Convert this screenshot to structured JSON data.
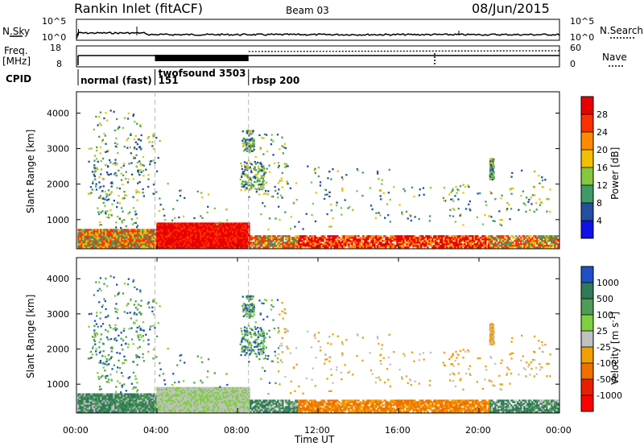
{
  "header": {
    "title": "Rankin Inlet (fitACF)",
    "beam": "Beam 03",
    "date": "08/Jun/2015"
  },
  "params": {
    "nsky_label": "N.Sky",
    "nsky_ticks": [
      "10^5",
      "10^0"
    ],
    "nsearch_label": "N.Search",
    "nsearch_ticks": [
      "10^5",
      "10^0"
    ],
    "freq_label": "Freq.",
    "freq_unit": "[MHz]",
    "freq_ticks": [
      "18",
      "8"
    ],
    "nave_label": "Nave",
    "nave_ticks": [
      "60",
      "0"
    ],
    "cpid_label": "CPID",
    "cpid_segments": [
      {
        "name": "normal (fast)",
        "start_h": 0.0
      },
      {
        "name": "twofsound 3503",
        "start_h": 3.9
      },
      {
        "name": "151",
        "start_h": 3.9
      },
      {
        "name": "rbsp 200",
        "start_h": 8.55
      }
    ]
  },
  "chart_data": [
    {
      "type": "heatmap",
      "name": "power",
      "ylabel": "Slant Range [km]",
      "yticks": [
        1000,
        2000,
        3000,
        4000
      ],
      "ylim": [
        180,
        4600
      ],
      "xlim_hours": [
        0,
        24
      ],
      "colorbar_label": "Power [dB]",
      "colorbar_ticks": [
        "28",
        "24",
        "20",
        "16",
        "12",
        "8",
        "4"
      ],
      "colorbar_colors": [
        "#e80000",
        "#ff3000",
        "#ff8c00",
        "#f2c000",
        "#86c640",
        "#3f9a68",
        "#244ea0",
        "#1010e8"
      ]
    },
    {
      "type": "heatmap",
      "name": "velocity",
      "ylabel": "Slant Range [km]",
      "yticks": [
        1000,
        2000,
        3000,
        4000
      ],
      "ylim": [
        180,
        4600
      ],
      "xlim_hours": [
        0,
        24
      ],
      "xlabel": "Time UT",
      "xticks": [
        "00:00",
        "04:00",
        "08:00",
        "12:00",
        "16:00",
        "20:00",
        "00:00"
      ],
      "colorbar_label": "Velocity [m s",
      "colorbar_label_sup": "-1",
      "colorbar_label_end": "]",
      "colorbar_ticks": [
        "1000",
        "500",
        "100",
        "25",
        "-25",
        "-100",
        "-500",
        "-1000"
      ],
      "colorbar_colors": [
        "#2050c8",
        "#2f7a58",
        "#4f9c56",
        "#7ed040",
        "#c0c0c0",
        "#f2a000",
        "#f07000",
        "#e82000",
        "#ff0000"
      ]
    }
  ]
}
